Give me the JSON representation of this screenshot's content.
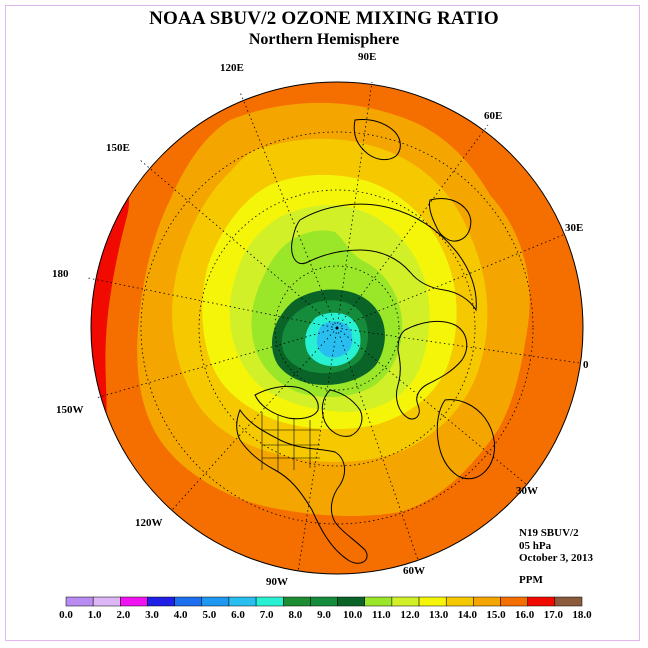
{
  "title": "NOAA SBUV/2 OZONE MIXING RATIO",
  "subtitle": "Northern Hemisphere",
  "longitude_labels": {
    "lon_90E": "90E",
    "lon_60E": "60E",
    "lon_30E": "30E",
    "lon_0": "0",
    "lon_30W": "30W",
    "lon_60W": "60W",
    "lon_90W": "90W",
    "lon_120W": "120W",
    "lon_150W": "150W",
    "lon_180": "180",
    "lon_150E": "150E",
    "lon_120E": "120E"
  },
  "info": {
    "instrument": "N19 SBUV/2",
    "level": "05 hPa",
    "date": "October 3, 2013",
    "units": "PPM"
  },
  "colorbar": {
    "ticks": [
      "0.0",
      "1.0",
      "2.0",
      "3.0",
      "4.0",
      "5.0",
      "6.0",
      "7.0",
      "8.0",
      "9.0",
      "10.0",
      "11.0",
      "12.0",
      "13.0",
      "14.0",
      "15.0",
      "16.0",
      "17.0",
      "18.0"
    ],
    "colors": [
      "#b88cf0",
      "#dcb6f5",
      "#f012f0",
      "#1f1fe6",
      "#1e6ff0",
      "#1e98f0",
      "#28bff0",
      "#28f0d2",
      "#1e8c32",
      "#148c3c",
      "#0a6428",
      "#9ae628",
      "#d2f028",
      "#f5f50a",
      "#f5c800",
      "#f5a500",
      "#f56e00",
      "#f00a00",
      "#8c5a3c"
    ]
  },
  "map_regions": [
    {
      "name": "outer-band",
      "level": "15.0-16.0",
      "color": "#f56e00"
    },
    {
      "name": "high-band",
      "level": "16.0-17.0",
      "color": "#f00a00"
    },
    {
      "name": "band-14",
      "level": "14.0-15.0",
      "color": "#f5a500"
    },
    {
      "name": "band-13",
      "level": "13.0-14.0",
      "color": "#f5c800"
    },
    {
      "name": "band-12",
      "level": "12.0-13.0",
      "color": "#f5f50a"
    },
    {
      "name": "band-11",
      "level": "11.0-12.0",
      "color": "#d2f028"
    },
    {
      "name": "band-10",
      "level": "10.0-11.0",
      "color": "#9ae628"
    },
    {
      "name": "band-9",
      "level": "9.0-10.0",
      "color": "#0a6428"
    },
    {
      "name": "band-8",
      "level": "8.0-9.0",
      "color": "#148c3c"
    },
    {
      "name": "band-7",
      "level": "7.0-8.0",
      "color": "#28f0d2"
    },
    {
      "name": "band-6",
      "level": "6.0-7.0",
      "color": "#28bff0"
    }
  ]
}
